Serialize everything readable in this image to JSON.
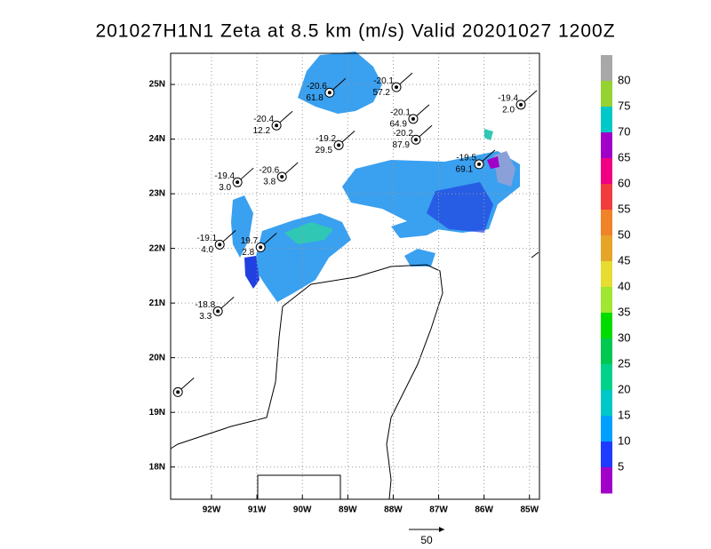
{
  "chart_data": {
    "type": "map",
    "title": "201027H1N1 Zeta at 8.5 km (m/s) Valid 20201027 1200Z",
    "xlim": [
      -92.9,
      -84.78
    ],
    "ylim": [
      17.41,
      25.57
    ],
    "xticks": [
      {
        "value": -92,
        "label": "92W"
      },
      {
        "value": -91,
        "label": "91W"
      },
      {
        "value": -90,
        "label": "90W"
      },
      {
        "value": -89,
        "label": "89W"
      },
      {
        "value": -88,
        "label": "88W"
      },
      {
        "value": -87,
        "label": "87W"
      },
      {
        "value": -86,
        "label": "86W"
      },
      {
        "value": -85,
        "label": "85W"
      }
    ],
    "yticks": [
      {
        "value": 25,
        "label": "25N"
      },
      {
        "value": 24,
        "label": "24N"
      },
      {
        "value": 23,
        "label": "23N"
      },
      {
        "value": 22,
        "label": "22N"
      },
      {
        "value": 21,
        "label": "21N"
      },
      {
        "value": 20,
        "label": "20N"
      },
      {
        "value": 19,
        "label": "19N"
      },
      {
        "value": 18,
        "label": "18N"
      }
    ],
    "grid": true,
    "colorbar": {
      "ticks": [
        80,
        75,
        70,
        65,
        60,
        55,
        50,
        45,
        40,
        35,
        30,
        25,
        20,
        15,
        10,
        5
      ],
      "colors": [
        "#a8a8a8",
        "#96d232",
        "#00c8c8",
        "#a000c8",
        "#f00082",
        "#f03c3c",
        "#f08228",
        "#e6a528",
        "#e6dc32",
        "#a0e632",
        "#00dc00",
        "#00c850",
        "#00d28c",
        "#00c8c8",
        "#00a0ff",
        "#1e3cff",
        "#a000c8"
      ]
    },
    "stations": [
      {
        "lon": -87.93,
        "lat": 24.95,
        "labels": [
          "-20.1",
          "57.2"
        ]
      },
      {
        "lon": -89.4,
        "lat": 24.85,
        "labels": [
          "-20.6",
          "61.8"
        ]
      },
      {
        "lon": -90.57,
        "lat": 24.25,
        "labels": [
          "-20.4",
          "12.2"
        ]
      },
      {
        "lon": -89.2,
        "lat": 23.89,
        "labels": [
          "-19.2",
          "29.5"
        ]
      },
      {
        "lon": -87.56,
        "lat": 24.37,
        "labels": [
          "-20.1",
          "64.9"
        ]
      },
      {
        "lon": -87.5,
        "lat": 23.99,
        "labels": [
          "-20.2",
          "87.9"
        ]
      },
      {
        "lon": -86.11,
        "lat": 23.54,
        "labels": [
          "-19.5",
          "69.1"
        ]
      },
      {
        "lon": -85.19,
        "lat": 24.63,
        "labels": [
          "-19.4",
          "2.0"
        ]
      },
      {
        "lon": -90.45,
        "lat": 23.31,
        "labels": [
          "-20.6",
          "3.8"
        ]
      },
      {
        "lon": -91.43,
        "lat": 23.21,
        "labels": [
          "-19.4",
          "3.0"
        ]
      },
      {
        "lon": -91.82,
        "lat": 22.07,
        "labels": [
          "-19.1",
          "4.0"
        ]
      },
      {
        "lon": -90.92,
        "lat": 22.02,
        "labels": [
          "19.7",
          "2.8"
        ]
      },
      {
        "lon": -91.86,
        "lat": 20.85,
        "labels": [
          "-18.8",
          "3.3"
        ]
      },
      {
        "lon": -92.74,
        "lat": 19.37,
        "labels": []
      }
    ],
    "vector_scale_label": "50"
  }
}
